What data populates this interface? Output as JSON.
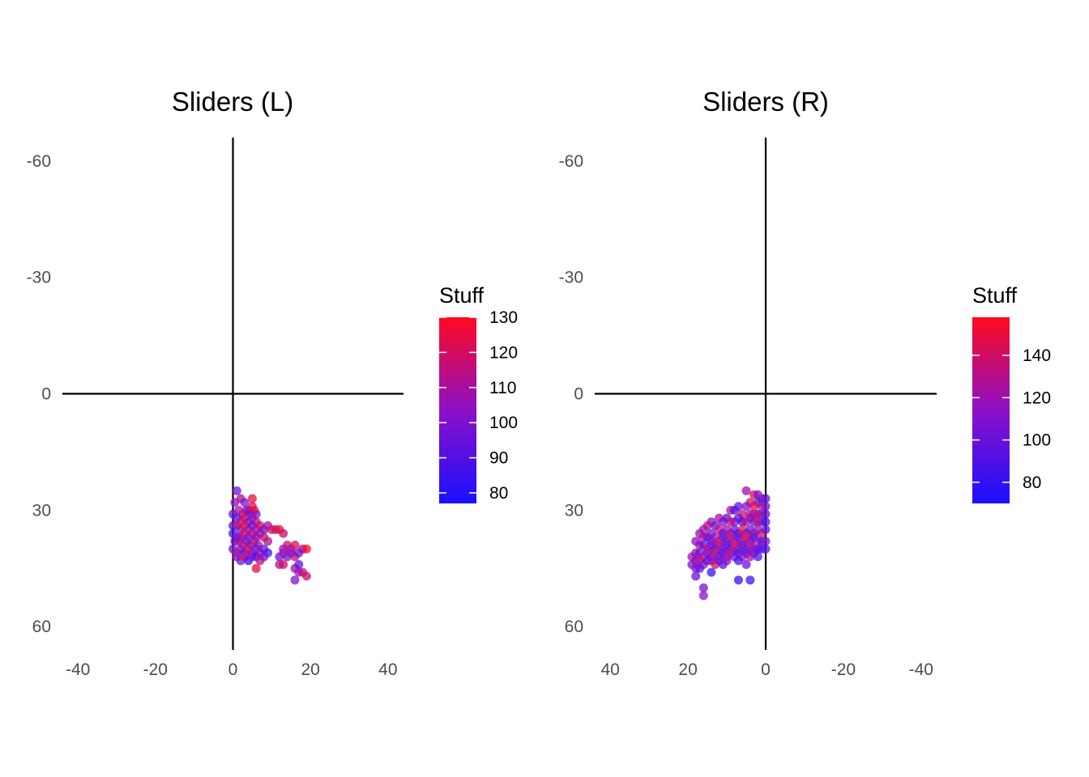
{
  "chart_data": [
    {
      "type": "scatter",
      "title": "Sliders (L)",
      "xlabel": "",
      "ylabel": "",
      "xlim": [
        -44,
        44
      ],
      "ylim": [
        -66,
        66
      ],
      "y_reversed": true,
      "x_reversed": false,
      "x_ticks": [
        -40,
        -20,
        0,
        20,
        40
      ],
      "y_ticks": [
        -60,
        -30,
        0,
        30,
        60
      ],
      "grid": false,
      "reference_lines": {
        "x": 0,
        "y": 0
      },
      "legend": {
        "title": "Stuff",
        "placement": "right",
        "type": "colorbar",
        "min": 77,
        "max": 130,
        "ticks": [
          80,
          90,
          100,
          110,
          120,
          130
        ],
        "low_color": "#1a10ff",
        "mid_color": "#8c10c8",
        "high_color": "#ff0a1e"
      },
      "point_opacity": 0.75,
      "points": [
        [
          1,
          25,
          96
        ],
        [
          0.5,
          28,
          105
        ],
        [
          2,
          27,
          112
        ],
        [
          3,
          28,
          100
        ],
        [
          4,
          30,
          118
        ],
        [
          5,
          27,
          125
        ],
        [
          5,
          29,
          120
        ],
        [
          1.5,
          30,
          108
        ],
        [
          0,
          31,
          98
        ],
        [
          2.5,
          31,
          115
        ],
        [
          3.5,
          30,
          106
        ],
        [
          4.5,
          31,
          92
        ],
        [
          5.5,
          30,
          128
        ],
        [
          6,
          31,
          101
        ],
        [
          1,
          32,
          88
        ],
        [
          2,
          33,
          110
        ],
        [
          3,
          32,
          122
        ],
        [
          4,
          33,
          95
        ],
        [
          5,
          32,
          104
        ],
        [
          6,
          33,
          113
        ],
        [
          0,
          34,
          90
        ],
        [
          1,
          34,
          117
        ],
        [
          2,
          35,
          99
        ],
        [
          3,
          34,
          126
        ],
        [
          4,
          35,
          103
        ],
        [
          5,
          34,
          97
        ],
        [
          6,
          35,
          111
        ],
        [
          7,
          34,
          119
        ],
        [
          8,
          35,
          96
        ],
        [
          9,
          34,
          108
        ],
        [
          10,
          35,
          123
        ],
        [
          11,
          35,
          114
        ],
        [
          12,
          35,
          128
        ],
        [
          13,
          36,
          116
        ],
        [
          0,
          36,
          84
        ],
        [
          1,
          37,
          107
        ],
        [
          2,
          37,
          94
        ],
        [
          3,
          36,
          121
        ],
        [
          4,
          37,
          100
        ],
        [
          5,
          36,
          112
        ],
        [
          6,
          37,
          98
        ],
        [
          7,
          36,
          105
        ],
        [
          8,
          37,
          118
        ],
        [
          0.5,
          38,
          93
        ],
        [
          1.5,
          38,
          109
        ],
        [
          2.5,
          39,
          124
        ],
        [
          3.5,
          38,
          102
        ],
        [
          4.5,
          39,
          96
        ],
        [
          5.5,
          38,
          115
        ],
        [
          6.5,
          39,
          107
        ],
        [
          9,
          38,
          112
        ],
        [
          0,
          40,
          98
        ],
        [
          1,
          41,
          113
        ],
        [
          2,
          40,
          102
        ],
        [
          3,
          41,
          90
        ],
        [
          4,
          40,
          119
        ],
        [
          5,
          41,
          104
        ],
        [
          6,
          40,
          99
        ],
        [
          7,
          41,
          111
        ],
        [
          8,
          40,
          94
        ],
        [
          9,
          41,
          86
        ],
        [
          13,
          40,
          101
        ],
        [
          14,
          39,
          117
        ],
        [
          15,
          40,
          108
        ],
        [
          16,
          39,
          122
        ],
        [
          18,
          40,
          113
        ],
        [
          19,
          40,
          127
        ],
        [
          1,
          42,
          106
        ],
        [
          2,
          43,
          97
        ],
        [
          3,
          42,
          120
        ],
        [
          4,
          43,
          82
        ],
        [
          5,
          42,
          103
        ],
        [
          6,
          42,
          92
        ],
        [
          7,
          43,
          114
        ],
        [
          8,
          42,
          100
        ],
        [
          12,
          42,
          95
        ],
        [
          13,
          41,
          110
        ],
        [
          14,
          42,
          97
        ],
        [
          15,
          41,
          103
        ],
        [
          16,
          42,
          115
        ],
        [
          17,
          41,
          98
        ],
        [
          12,
          44,
          112
        ],
        [
          13,
          44,
          119
        ],
        [
          16,
          45,
          106
        ],
        [
          17,
          44,
          92
        ],
        [
          18,
          46,
          120
        ],
        [
          17,
          46,
          108
        ],
        [
          6,
          45,
          124
        ],
        [
          16,
          48,
          101
        ],
        [
          19,
          47,
          118
        ]
      ]
    },
    {
      "type": "scatter",
      "title": "Sliders (R)",
      "xlabel": "",
      "ylabel": "",
      "xlim": [
        -44,
        44
      ],
      "ylim": [
        -66,
        66
      ],
      "y_reversed": true,
      "x_reversed": true,
      "x_ticks": [
        40,
        20,
        0,
        -20,
        -40
      ],
      "y_ticks": [
        -60,
        -30,
        0,
        30,
        60
      ],
      "grid": false,
      "reference_lines": {
        "x": 0,
        "y": 0
      },
      "legend": {
        "title": "Stuff",
        "placement": "right",
        "type": "colorbar",
        "min": 70,
        "max": 158,
        "ticks": [
          80,
          100,
          120,
          140
        ],
        "low_color": "#1a10ff",
        "mid_color": "#8c10c8",
        "high_color": "#ff0a1e"
      },
      "point_opacity": 0.75,
      "points": [
        [
          5,
          25,
          120
        ],
        [
          3,
          26,
          145
        ],
        [
          2,
          26,
          110
        ],
        [
          1,
          27,
          130
        ],
        [
          0,
          27,
          95
        ],
        [
          4,
          28,
          138
        ],
        [
          2,
          28,
          88
        ],
        [
          1,
          29,
          125
        ],
        [
          0,
          29,
          105
        ],
        [
          3,
          29,
          150
        ],
        [
          5,
          29,
          112
        ],
        [
          7,
          29,
          98
        ],
        [
          9,
          30,
          132
        ],
        [
          8,
          30,
          90
        ],
        [
          6,
          31,
          142
        ],
        [
          4,
          31,
          118
        ],
        [
          2,
          31,
          86
        ],
        [
          1,
          31,
          128
        ],
        [
          0,
          31,
          100
        ],
        [
          3,
          31,
          135
        ],
        [
          12,
          32,
          126
        ],
        [
          11,
          33,
          108
        ],
        [
          10,
          32,
          94
        ],
        [
          9,
          33,
          140
        ],
        [
          8,
          33,
          116
        ],
        [
          7,
          32,
          102
        ],
        [
          6,
          33,
          84
        ],
        [
          5,
          33,
          130
        ],
        [
          4,
          32,
          120
        ],
        [
          3,
          33,
          97
        ],
        [
          2,
          33,
          144
        ],
        [
          1,
          33,
          112
        ],
        [
          0,
          33,
          89
        ],
        [
          14,
          33,
          115
        ],
        [
          13,
          34,
          99
        ],
        [
          15,
          34,
          133
        ],
        [
          16,
          35,
          122
        ],
        [
          14,
          36,
          104
        ],
        [
          12,
          35,
          137
        ],
        [
          11,
          36,
          92
        ],
        [
          10,
          35,
          118
        ],
        [
          9,
          36,
          126
        ],
        [
          8,
          35,
          101
        ],
        [
          7,
          36,
          87
        ],
        [
          6,
          35,
          147
        ],
        [
          5,
          36,
          110
        ],
        [
          4,
          35,
          95
        ],
        [
          3,
          36,
          128
        ],
        [
          2,
          35,
          115
        ],
        [
          1,
          36,
          138
        ],
        [
          0,
          35,
          100
        ],
        [
          17,
          36,
          118
        ],
        [
          16,
          37,
          130
        ],
        [
          15,
          37,
          103
        ],
        [
          14,
          38,
          96
        ],
        [
          13,
          37,
          121
        ],
        [
          12,
          38,
          141
        ],
        [
          11,
          37,
          109
        ],
        [
          10,
          38,
          91
        ],
        [
          9,
          37,
          134
        ],
        [
          8,
          38,
          117
        ],
        [
          7,
          37,
          99
        ],
        [
          6,
          38,
          125
        ],
        [
          5,
          37,
          152
        ],
        [
          4,
          38,
          107
        ],
        [
          3,
          37,
          89
        ],
        [
          2,
          38,
          120
        ],
        [
          1,
          38,
          98
        ],
        [
          0,
          38,
          110
        ],
        [
          18,
          38,
          112
        ],
        [
          17,
          39,
          124
        ],
        [
          16,
          39,
          98
        ],
        [
          15,
          40,
          136
        ],
        [
          14,
          39,
          110
        ],
        [
          13,
          40,
          90
        ],
        [
          12,
          39,
          128
        ],
        [
          11,
          40,
          115
        ],
        [
          10,
          39,
          103
        ],
        [
          9,
          40,
          87
        ],
        [
          8,
          39,
          142
        ],
        [
          7,
          40,
          119
        ],
        [
          6,
          39,
          100
        ],
        [
          5,
          40,
          93
        ],
        [
          4,
          39,
          131
        ],
        [
          3,
          40,
          112
        ],
        [
          2,
          40,
          102
        ],
        [
          1,
          40,
          88
        ],
        [
          0,
          40,
          97
        ],
        [
          18,
          41,
          118
        ],
        [
          17,
          41,
          102
        ],
        [
          16,
          42,
          127
        ],
        [
          15,
          41,
          114
        ],
        [
          14,
          42,
          96
        ],
        [
          13,
          41,
          138
        ],
        [
          12,
          42,
          108
        ],
        [
          11,
          41,
          93
        ],
        [
          10,
          42,
          121
        ],
        [
          9,
          41,
          131
        ],
        [
          8,
          42,
          105
        ],
        [
          7,
          41,
          89
        ],
        [
          6,
          42,
          116
        ],
        [
          5,
          41,
          99
        ],
        [
          4,
          42,
          123
        ],
        [
          3,
          41,
          108
        ],
        [
          2,
          42,
          95
        ],
        [
          19,
          42,
          120
        ],
        [
          18,
          43,
          106
        ],
        [
          17,
          43,
          132
        ],
        [
          16,
          44,
          110
        ],
        [
          15,
          43,
          99
        ],
        [
          14,
          43,
          117
        ],
        [
          13,
          44,
          140
        ],
        [
          12,
          43,
          102
        ],
        [
          11,
          44,
          95
        ],
        [
          10,
          43,
          113
        ],
        [
          7,
          43,
          88
        ],
        [
          5,
          44,
          104
        ],
        [
          19,
          44,
          112
        ],
        [
          18,
          45,
          108
        ],
        [
          17,
          45,
          98
        ],
        [
          14,
          46,
          84
        ],
        [
          18,
          47,
          100
        ],
        [
          7,
          48,
          82
        ],
        [
          4,
          48,
          84
        ],
        [
          16,
          50,
          106
        ],
        [
          16,
          52,
          112
        ]
      ]
    }
  ]
}
